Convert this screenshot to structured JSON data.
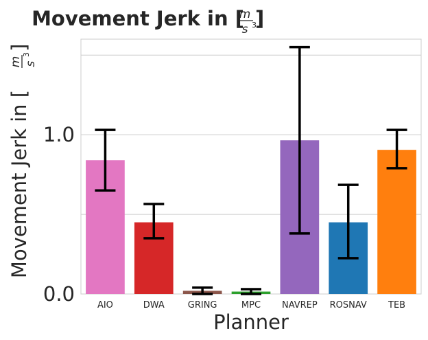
{
  "chart_data": {
    "type": "bar",
    "title": "Movement Jerk in [m/s³]",
    "xlabel": "Planner",
    "ylabel": "Movement Jerk in [m/s³]",
    "categories": [
      "AIO",
      "DWA",
      "GRING",
      "MPC",
      "NAVREP",
      "ROSNAV",
      "TEB"
    ],
    "values": [
      0.84,
      0.45,
      0.02,
      0.015,
      0.965,
      0.45,
      0.905
    ],
    "error_low": [
      0.65,
      0.35,
      0.0,
      0.0,
      0.38,
      0.225,
      0.79
    ],
    "error_high": [
      1.03,
      0.565,
      0.04,
      0.03,
      1.55,
      0.685,
      1.03
    ],
    "colors": [
      "#e377c2",
      "#d62728",
      "#8c564b",
      "#2ca02c",
      "#9467bd",
      "#1f77b4",
      "#ff7f0e"
    ],
    "ylim": [
      0,
      1.6
    ],
    "yticks": [
      0.0,
      1.0
    ],
    "yticklabels": [
      "0.0",
      "1.0"
    ],
    "ygrid": [
      0.5,
      1.0,
      1.5
    ],
    "grid": true
  }
}
